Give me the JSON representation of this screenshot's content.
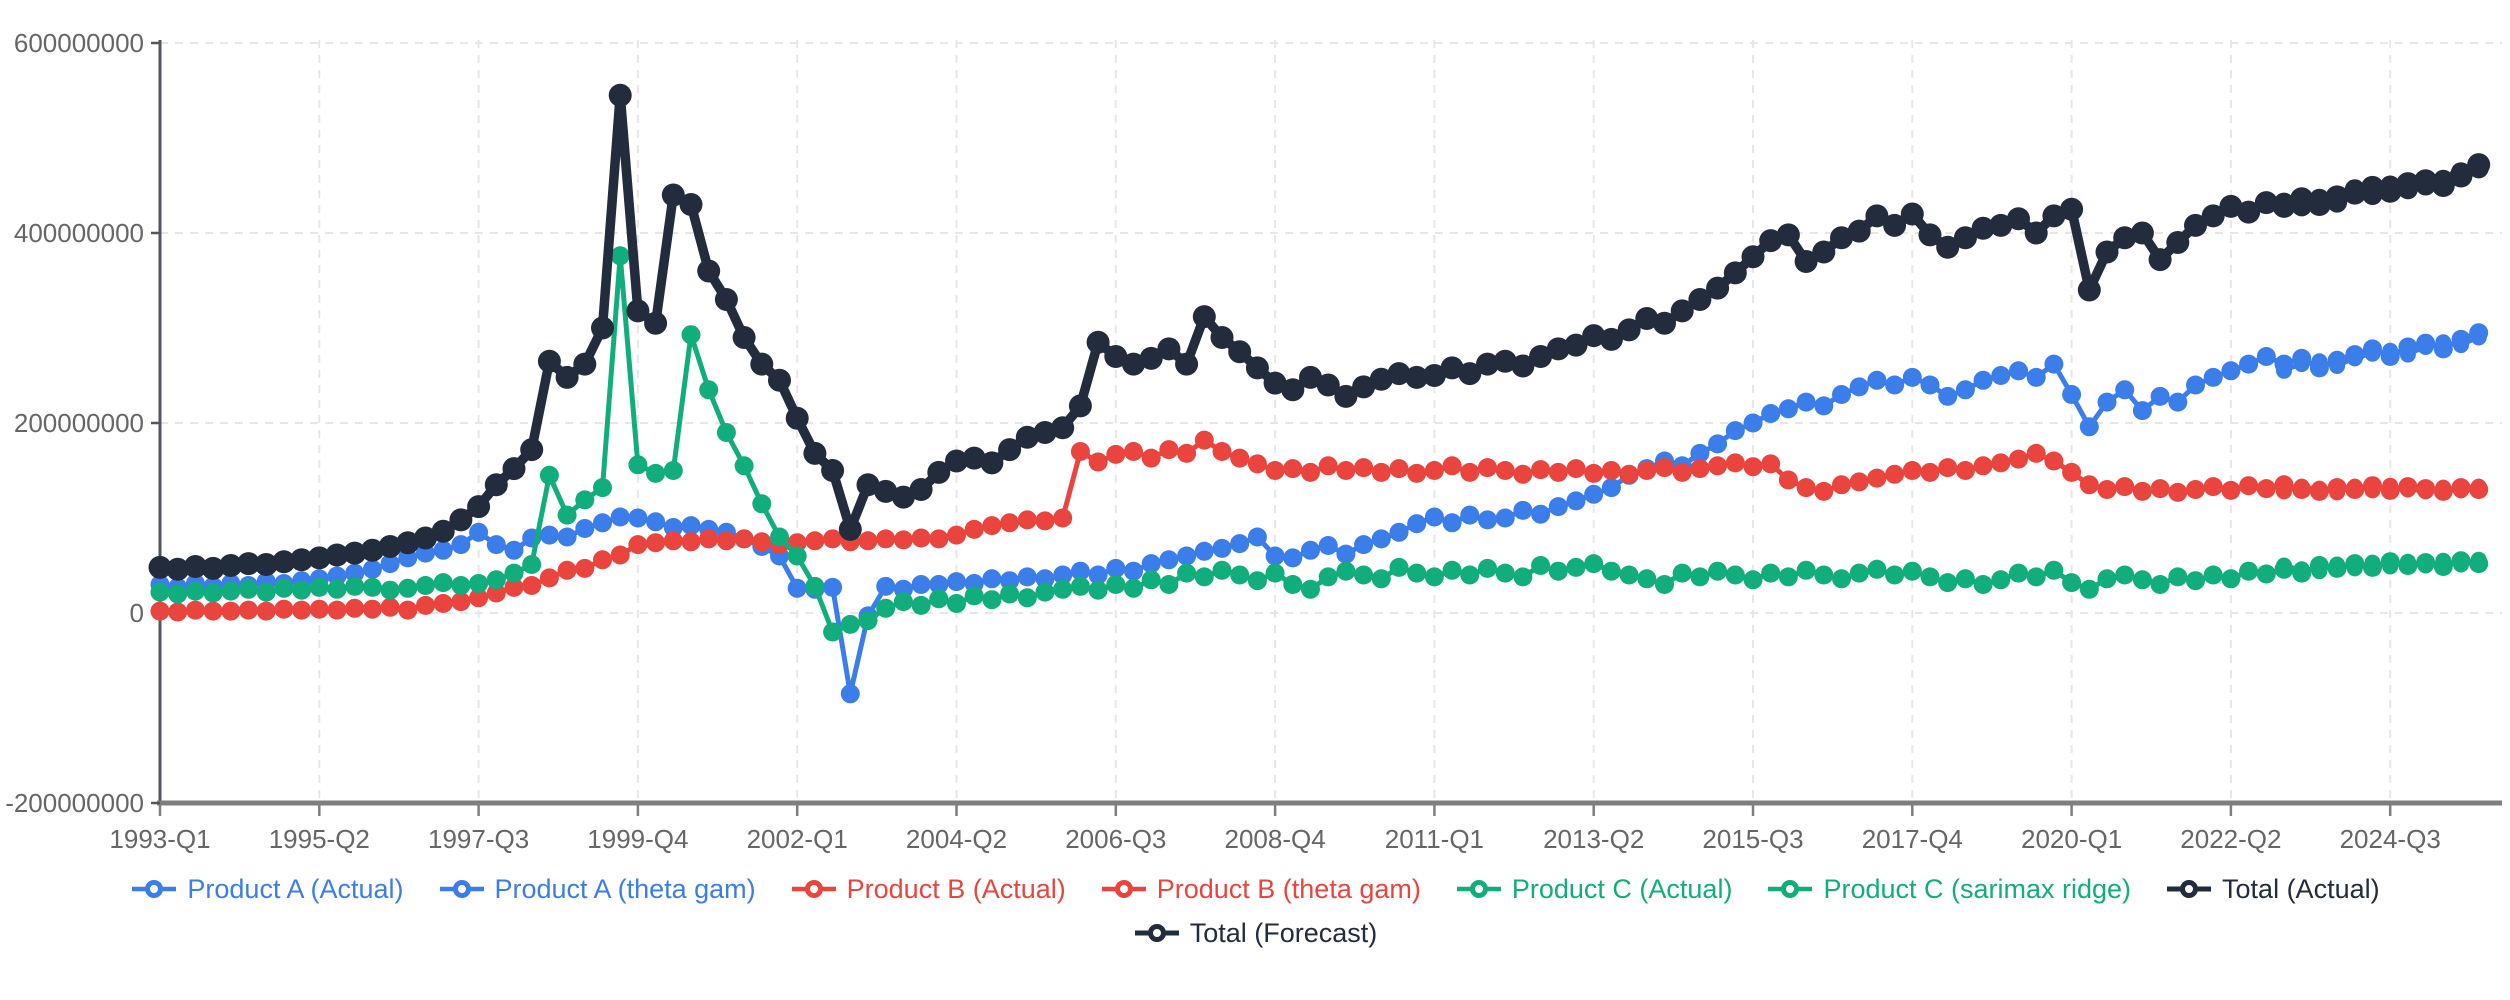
{
  "chart_data": {
    "type": "line",
    "title": "",
    "xlabel": "",
    "ylabel": "",
    "grid": true,
    "legend_position": "bottom-center",
    "x_axis": {
      "start_period": "1993-Q1",
      "end_period": "2025-Q4",
      "frequency": "quarterly",
      "tick_every_n_quarters": 9,
      "tick_labels": [
        "1993-Q1",
        "1995-Q2",
        "1997-Q3",
        "1999-Q4",
        "2002-Q1",
        "2004-Q2",
        "2006-Q3",
        "2008-Q4",
        "2011-Q1",
        "2013-Q2",
        "2015-Q3",
        "2017-Q4",
        "2020-Q1",
        "2022-Q2",
        "2024-Q3"
      ]
    },
    "y_axis": {
      "min": -200000000,
      "max": 600000000,
      "tick_values_millions": [
        600,
        400,
        200,
        0,
        -200
      ],
      "tick_labels": [
        "600000000",
        "400000000",
        "200000000",
        "0",
        "-200000000"
      ]
    },
    "values_unit": "1e6",
    "colors": {
      "product_a": "#3b7de9",
      "product_b": "#ea443f",
      "product_c": "#12ad7c",
      "total": "#222c3c",
      "gridline": "#e7e7e7",
      "x_axis_line": "#7e7e7e",
      "y_axis_line": "#53565c",
      "tick_text": "#666666"
    },
    "series": [
      {
        "name": "Product A (Actual)",
        "color_key": "product_a",
        "kind": "actual",
        "start_quarter_index": 0,
        "values": [
          30,
          27,
          31,
          28,
          31,
          29,
          33,
          31,
          34,
          36,
          39,
          42,
          46,
          52,
          58,
          63,
          66,
          72,
          85,
          72,
          66,
          79,
          82,
          80,
          89,
          95,
          101,
          100,
          96,
          90,
          92,
          88,
          85,
          78,
          70,
          60,
          26,
          25,
          27,
          -85,
          -3,
          28,
          25,
          30,
          30,
          33,
          31,
          36,
          34,
          38,
          36,
          40,
          44,
          40,
          47,
          44,
          52,
          56,
          60,
          65,
          68,
          73,
          80,
          60,
          58,
          66,
          71,
          62,
          72,
          78,
          85,
          94,
          101,
          95,
          103,
          98,
          100,
          108,
          104,
          112,
          118,
          125,
          132,
          145,
          152,
          160,
          155,
          168,
          178,
          192,
          200,
          210,
          215,
          222,
          218,
          230,
          238,
          245,
          240,
          248,
          240,
          228,
          235,
          245,
          250,
          255,
          248,
          262,
          230,
          196,
          222,
          235,
          213,
          228,
          222,
          240,
          248,
          255,
          262,
          270,
          262,
          268,
          258,
          266,
          272,
          278,
          270,
          280,
          284,
          278,
          288,
          295
        ]
      },
      {
        "name": "Product A (theta gam)",
        "color_key": "product_a",
        "kind": "forecast",
        "start_quarter_index": 120,
        "values": [
          255,
          262,
          265,
          260,
          268,
          273,
          276,
          272,
          280,
          285,
          282,
          290
        ]
      },
      {
        "name": "Product B (Actual)",
        "color_key": "product_b",
        "kind": "actual",
        "start_quarter_index": 0,
        "values": [
          2,
          1,
          3,
          2,
          2,
          3,
          2,
          4,
          3,
          4,
          3,
          5,
          4,
          6,
          3,
          8,
          10,
          12,
          16,
          21,
          27,
          29,
          37,
          45,
          47,
          56,
          61,
          72,
          74,
          76,
          75,
          78,
          76,
          78,
          75,
          72,
          74,
          76,
          78,
          75,
          76,
          78,
          77,
          79,
          78,
          82,
          88,
          92,
          95,
          98,
          97,
          100,
          170,
          159,
          167,
          170,
          163,
          172,
          168,
          182,
          170,
          163,
          157,
          150,
          152,
          148,
          155,
          150,
          153,
          148,
          152,
          147,
          150,
          155,
          148,
          153,
          150,
          146,
          151,
          148,
          152,
          147,
          150,
          146,
          150,
          153,
          148,
          152,
          155,
          158,
          154,
          157,
          140,
          132,
          128,
          135,
          138,
          142,
          146,
          150,
          148,
          153,
          150,
          155,
          158,
          162,
          168,
          160,
          148,
          135,
          130,
          133,
          128,
          131,
          127,
          130,
          133,
          129,
          134,
          131,
          135,
          130,
          128,
          132,
          130,
          134,
          129,
          133,
          131,
          128,
          132,
          130
        ]
      },
      {
        "name": "Product B (theta gam)",
        "color_key": "product_b",
        "kind": "forecast",
        "start_quarter_index": 120,
        "values": [
          128,
          133,
          131,
          127,
          133,
          129,
          134,
          130,
          128,
          132,
          129,
          133
        ]
      },
      {
        "name": "Product C (Actual)",
        "color_key": "product_c",
        "kind": "actual",
        "start_quarter_index": 0,
        "values": [
          22,
          20,
          23,
          21,
          23,
          25,
          22,
          26,
          24,
          27,
          25,
          28,
          27,
          24,
          26,
          29,
          32,
          29,
          31,
          35,
          42,
          51,
          145,
          103,
          119,
          132,
          376,
          156,
          147,
          150,
          293,
          235,
          190,
          155,
          115,
          80,
          60,
          28,
          -20,
          -12,
          -8,
          5,
          12,
          8,
          15,
          10,
          18,
          14,
          20,
          16,
          22,
          25,
          28,
          24,
          30,
          26,
          35,
          30,
          42,
          38,
          45,
          40,
          34,
          42,
          30,
          25,
          38,
          44,
          40,
          36,
          48,
          42,
          38,
          45,
          40,
          47,
          42,
          38,
          50,
          44,
          48,
          52,
          44,
          40,
          36,
          30,
          42,
          38,
          44,
          40,
          35,
          42,
          38,
          45,
          40,
          36,
          42,
          46,
          40,
          44,
          38,
          32,
          36,
          30,
          35,
          42,
          38,
          45,
          32,
          25,
          36,
          40,
          35,
          30,
          38,
          34,
          40,
          36,
          44,
          41,
          46,
          42,
          50,
          47,
          52,
          48,
          54,
          50,
          53,
          49,
          55,
          52
        ]
      },
      {
        "name": "Product C (sarimax ridge)",
        "color_key": "product_c",
        "kind": "forecast",
        "start_quarter_index": 120,
        "values": [
          50,
          46,
          44,
          51,
          47,
          53,
          49,
          54,
          50,
          55,
          51,
          56
        ]
      },
      {
        "name": "Total (Actual)",
        "color_key": "total",
        "kind": "actual",
        "start_quarter_index": 0,
        "values": [
          48,
          46,
          49,
          47,
          50,
          52,
          51,
          54,
          56,
          58,
          61,
          63,
          66,
          70,
          74,
          79,
          86,
          98,
          112,
          135,
          152,
          172,
          265,
          248,
          262,
          300,
          545,
          318,
          305,
          440,
          430,
          360,
          330,
          290,
          262,
          245,
          205,
          168,
          150,
          88,
          135,
          128,
          122,
          130,
          148,
          160,
          163,
          158,
          172,
          185,
          190,
          195,
          218,
          285,
          270,
          262,
          268,
          278,
          262,
          312,
          290,
          275,
          258,
          242,
          235,
          248,
          240,
          228,
          238,
          246,
          252,
          248,
          250,
          258,
          252,
          262,
          265,
          260,
          270,
          278,
          282,
          292,
          288,
          298,
          310,
          305,
          318,
          330,
          342,
          358,
          375,
          392,
          398,
          370,
          380,
          395,
          402,
          418,
          408,
          420,
          398,
          385,
          395,
          405,
          408,
          415,
          400,
          418,
          425,
          340,
          380,
          395,
          400,
          372,
          390,
          408,
          418,
          428,
          422,
          432,
          428,
          436,
          430,
          438,
          442,
          448,
          444,
          452,
          455,
          450,
          460,
          472
        ]
      },
      {
        "name": "Total (Forecast)",
        "color_key": "total",
        "kind": "forecast",
        "start_quarter_index": 120,
        "values": [
          432,
          428,
          436,
          432,
          446,
          440,
          450,
          446,
          450,
          456,
          464,
          468
        ]
      }
    ]
  }
}
